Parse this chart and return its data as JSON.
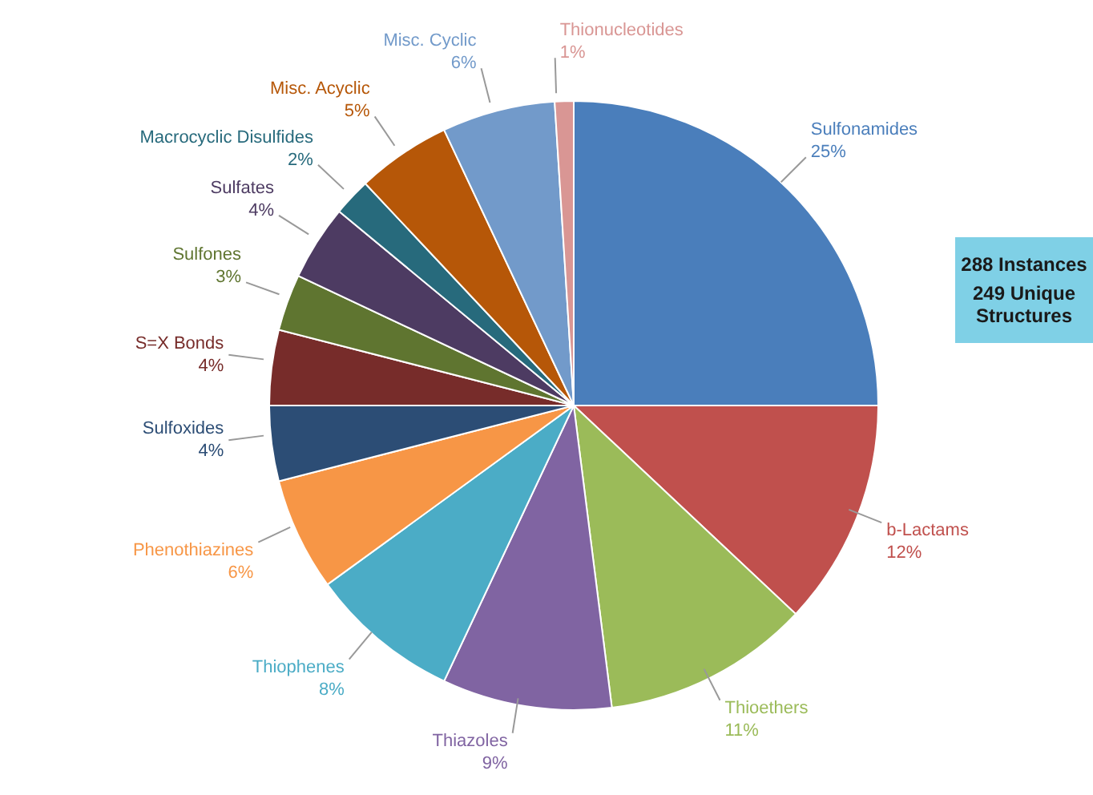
{
  "chart_data": {
    "type": "pie",
    "categories": [
      "Sulfonamides",
      "b-Lactams",
      "Thioethers",
      "Thiazoles",
      "Thiophenes",
      "Phenothiazines",
      "Sulfoxides",
      "S=X Bonds",
      "Sulfones",
      "Sulfates",
      "Macrocyclic Disulfides",
      "Misc. Acyclic",
      "Misc. Cyclic",
      "Thionucleotides"
    ],
    "values": [
      25,
      12,
      11,
      9,
      8,
      6,
      4,
      4,
      3,
      4,
      2,
      5,
      6,
      1
    ],
    "value_labels": [
      "25%",
      "12%",
      "11%",
      "9%",
      "8%",
      "6%",
      "4%",
      "4%",
      "3%",
      "4%",
      "2%",
      "5%",
      "6%",
      "1%"
    ],
    "colors": [
      "#4a7ebb",
      "#c0504d",
      "#9bbb59",
      "#8064a2",
      "#4bacc6",
      "#f79646",
      "#2c4d75",
      "#772c2a",
      "#5f7530",
      "#4d3b62",
      "#276a7c",
      "#b65708",
      "#729aca",
      "#d99694"
    ],
    "annotations": [
      "288 Instances",
      "249 Unique Structures"
    ]
  }
}
